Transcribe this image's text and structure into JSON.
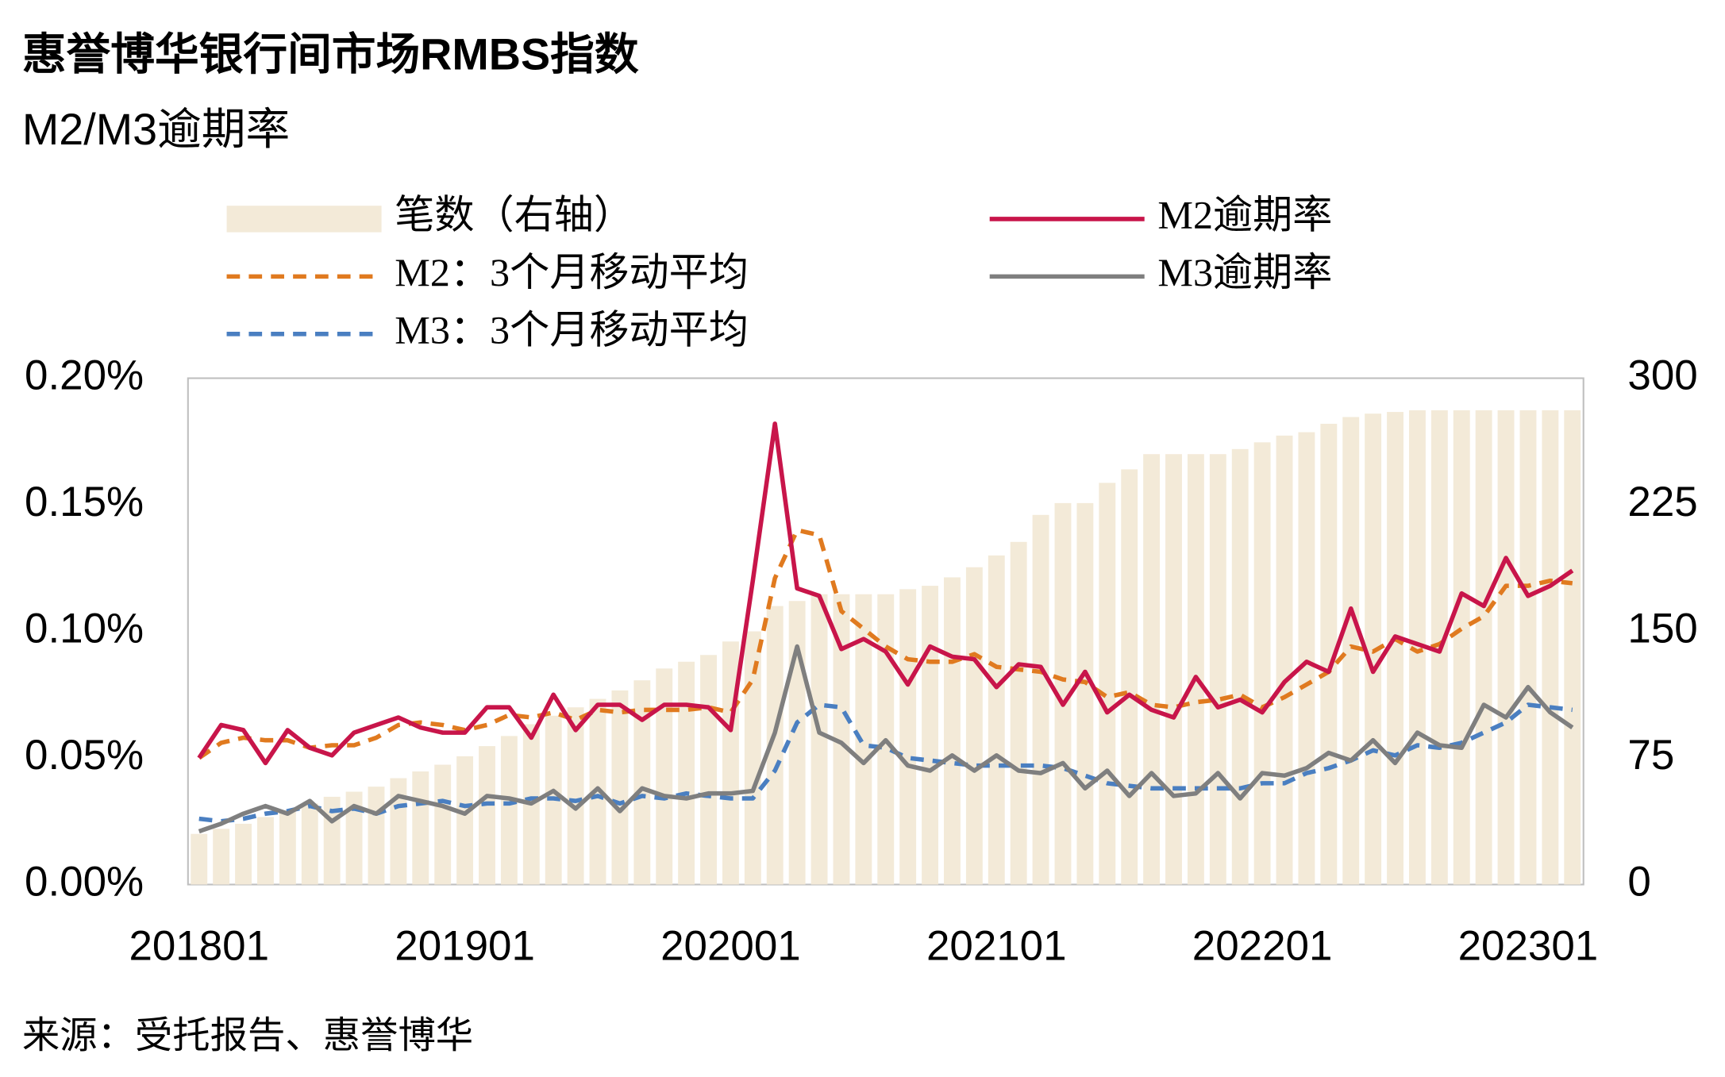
{
  "chart_data": {
    "type": "bar_line",
    "title": "惠誉博华银行间市场RMBS指数",
    "subtitle": "M2/M3逾期率",
    "source": "来源：受托报告、惠誉博华",
    "categories": [
      "201801",
      null,
      null,
      null,
      null,
      null,
      null,
      null,
      null,
      null,
      null,
      null,
      "201901",
      null,
      null,
      null,
      null,
      null,
      null,
      null,
      null,
      null,
      null,
      null,
      "202001",
      null,
      null,
      null,
      null,
      null,
      null,
      null,
      null,
      null,
      null,
      null,
      "202101",
      null,
      null,
      null,
      null,
      null,
      null,
      null,
      null,
      null,
      null,
      null,
      "202201",
      null,
      null,
      null,
      null,
      null,
      null,
      null,
      null,
      null,
      null,
      null,
      "202301",
      null,
      null
    ],
    "ylim": [
      0,
      0.2
    ],
    "yticks": [
      {
        "value": 0,
        "label": "0.00%"
      },
      {
        "value": 0.05,
        "label": "0.05%"
      },
      {
        "value": 0.1,
        "label": "0.10%"
      },
      {
        "value": 0.15,
        "label": "0.15%"
      },
      {
        "value": 0.2,
        "label": "0.20%"
      }
    ],
    "y2lim": [
      0,
      300
    ],
    "y2ticks": [
      0,
      75,
      150,
      225,
      300
    ],
    "grid": false,
    "series": [
      {
        "name": "笔数（右轴）",
        "kind": "bar",
        "axis": "y2",
        "color": "#f3ead8",
        "values": [
          30,
          33,
          36,
          40,
          44,
          48,
          52,
          55,
          58,
          63,
          67,
          71,
          76,
          82,
          88,
          95,
          100,
          105,
          110,
          115,
          121,
          128,
          132,
          136,
          144,
          150,
          165,
          168,
          172,
          172,
          172,
          172,
          175,
          177,
          182,
          188,
          195,
          203,
          219,
          226,
          226,
          238,
          246,
          255,
          255,
          255,
          255,
          258,
          262,
          266,
          268,
          273,
          277,
          279,
          280,
          281,
          281,
          281,
          281,
          281,
          281,
          281,
          281
        ]
      },
      {
        "name": "M2逾期率",
        "kind": "line",
        "color": "#c8154a",
        "values": [
          0.05,
          0.063,
          0.061,
          0.048,
          0.061,
          0.054,
          0.051,
          0.06,
          0.063,
          0.066,
          0.062,
          0.06,
          0.06,
          0.07,
          0.07,
          0.058,
          0.075,
          0.061,
          0.071,
          0.071,
          0.065,
          0.071,
          0.071,
          0.07,
          0.061,
          0.12,
          0.182,
          0.117,
          0.114,
          0.093,
          0.097,
          0.092,
          0.079,
          0.094,
          0.09,
          0.089,
          0.078,
          0.087,
          0.086,
          0.071,
          0.084,
          0.068,
          0.075,
          0.069,
          0.066,
          0.082,
          0.07,
          0.073,
          0.068,
          0.08,
          0.088,
          0.084,
          0.109,
          0.084,
          0.098,
          0.095,
          0.092,
          0.115,
          0.11,
          0.129,
          0.114,
          0.118,
          0.124
        ]
      },
      {
        "name": "M2：3个月移动平均",
        "kind": "dashed",
        "color": "#e07a1f",
        "values": [
          0.05,
          0.056,
          0.058,
          0.057,
          0.057,
          0.054,
          0.055,
          0.055,
          0.058,
          0.063,
          0.064,
          0.063,
          0.061,
          0.063,
          0.067,
          0.066,
          0.068,
          0.065,
          0.069,
          0.068,
          0.069,
          0.069,
          0.069,
          0.07,
          0.068,
          0.081,
          0.121,
          0.14,
          0.138,
          0.108,
          0.101,
          0.094,
          0.089,
          0.088,
          0.088,
          0.091,
          0.086,
          0.085,
          0.084,
          0.081,
          0.08,
          0.074,
          0.076,
          0.071,
          0.07,
          0.072,
          0.073,
          0.075,
          0.07,
          0.074,
          0.079,
          0.084,
          0.094,
          0.092,
          0.097,
          0.092,
          0.095,
          0.101,
          0.106,
          0.118,
          0.118,
          0.12,
          0.119
        ]
      },
      {
        "name": "M3逾期率",
        "kind": "line",
        "color": "#7f7f7f",
        "values": [
          0.021,
          0.024,
          0.028,
          0.031,
          0.028,
          0.033,
          0.025,
          0.031,
          0.028,
          0.035,
          0.033,
          0.031,
          0.028,
          0.035,
          0.034,
          0.032,
          0.037,
          0.03,
          0.038,
          0.029,
          0.038,
          0.035,
          0.034,
          0.036,
          0.036,
          0.037,
          0.06,
          0.094,
          0.06,
          0.056,
          0.048,
          0.057,
          0.047,
          0.045,
          0.051,
          0.045,
          0.051,
          0.045,
          0.044,
          0.048,
          0.038,
          0.045,
          0.035,
          0.044,
          0.035,
          0.036,
          0.044,
          0.034,
          0.044,
          0.043,
          0.046,
          0.052,
          0.049,
          0.057,
          0.048,
          0.06,
          0.055,
          0.054,
          0.071,
          0.066,
          0.078,
          0.068,
          0.062
        ]
      },
      {
        "name": "M3：3个月移动平均",
        "kind": "dashed",
        "color": "#4a7fc1",
        "values": [
          0.026,
          0.025,
          0.026,
          0.028,
          0.029,
          0.031,
          0.029,
          0.03,
          0.028,
          0.031,
          0.032,
          0.033,
          0.031,
          0.032,
          0.032,
          0.034,
          0.034,
          0.033,
          0.035,
          0.032,
          0.035,
          0.034,
          0.036,
          0.035,
          0.034,
          0.034,
          0.045,
          0.064,
          0.071,
          0.07,
          0.055,
          0.054,
          0.05,
          0.049,
          0.048,
          0.047,
          0.047,
          0.047,
          0.047,
          0.046,
          0.043,
          0.04,
          0.039,
          0.038,
          0.038,
          0.038,
          0.038,
          0.038,
          0.04,
          0.04,
          0.044,
          0.046,
          0.049,
          0.053,
          0.051,
          0.055,
          0.054,
          0.056,
          0.06,
          0.064,
          0.071,
          0.07,
          0.069
        ]
      }
    ]
  }
}
